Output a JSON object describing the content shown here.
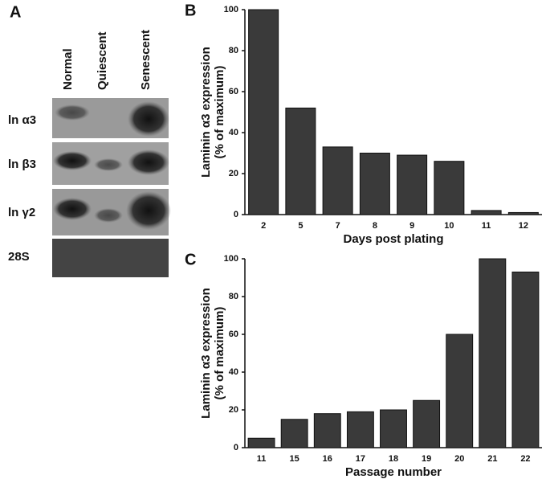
{
  "blot": {
    "panel": "A",
    "lanes": [
      "Normal",
      "Quiescent",
      "Senescent"
    ],
    "rows": [
      "ln α3",
      "ln β3",
      "ln γ2",
      "28S"
    ]
  },
  "chart_data": [
    {
      "type": "bar",
      "panel": "B",
      "ylabel": [
        "Laminin α3 expression",
        "(% of maximum)"
      ],
      "xlabel": "Days post plating",
      "categories": [
        "2",
        "5",
        "7",
        "8",
        "9",
        "10",
        "11",
        "12"
      ],
      "values": [
        100,
        52,
        33,
        30,
        29,
        26,
        2,
        1
      ],
      "color": "#3a3a3a",
      "ylim": [
        0,
        100
      ],
      "yticks": [
        0,
        20,
        40,
        60,
        80,
        100
      ]
    },
    {
      "type": "bar",
      "panel": "C",
      "ylabel": [
        "Laminin α3 expression",
        "(% of maximum)"
      ],
      "xlabel": "Passage number",
      "categories": [
        "11",
        "15",
        "16",
        "17",
        "18",
        "19",
        "20",
        "21",
        "22"
      ],
      "values": [
        5,
        15,
        18,
        19,
        20,
        25,
        60,
        100,
        93
      ],
      "color": "#3a3a3a",
      "ylim": [
        0,
        100
      ],
      "yticks": [
        0,
        20,
        40,
        60,
        80,
        100
      ]
    }
  ]
}
